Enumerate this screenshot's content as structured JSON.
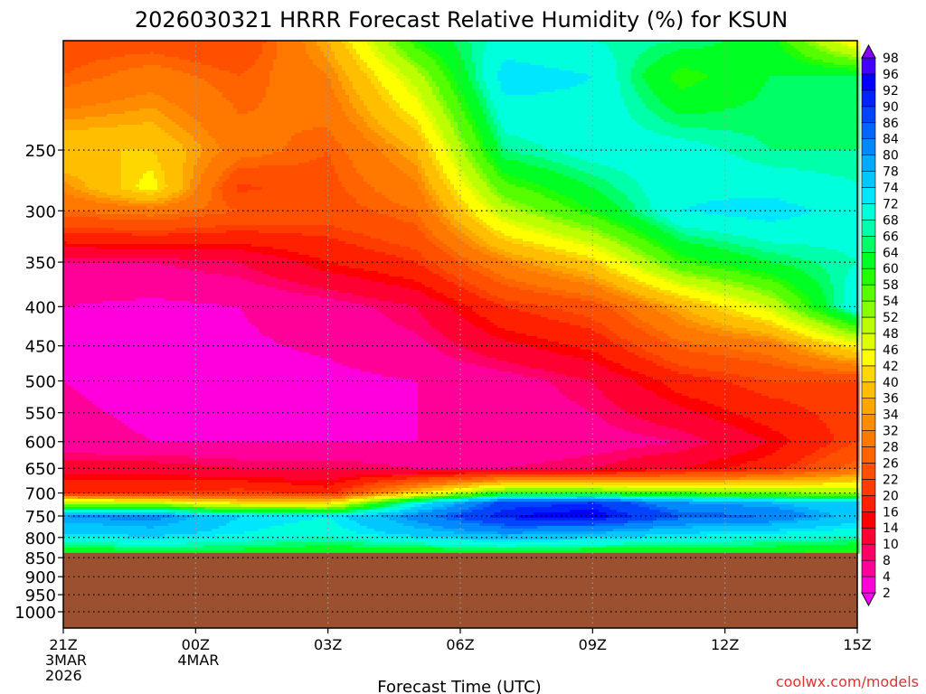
{
  "chart_data": {
    "type": "heatmap",
    "title": "2026030321 HRRR Forecast Relative Humidity (%) for KSUN",
    "xlabel": "Forecast Time (UTC)",
    "ylabel": "",
    "credit": "coolwx.com/models",
    "x_hours": [
      0,
      18
    ],
    "x_ticks": [
      {
        "hour": 0,
        "labels": [
          "21Z",
          "3MAR",
          "2026"
        ]
      },
      {
        "hour": 3,
        "labels": [
          "00Z",
          "4MAR"
        ]
      },
      {
        "hour": 6,
        "labels": [
          "03Z"
        ]
      },
      {
        "hour": 9,
        "labels": [
          "06Z"
        ]
      },
      {
        "hour": 12,
        "labels": [
          "09Z"
        ]
      },
      {
        "hour": 15,
        "labels": [
          "12Z"
        ]
      },
      {
        "hour": 18,
        "labels": [
          "15Z"
        ]
      }
    ],
    "y_axis": {
      "scale": "log-pressure",
      "top_hPa": 180,
      "bottom_hPa": 1050,
      "inverted": true
    },
    "y_ticks": [
      250,
      300,
      350,
      400,
      450,
      500,
      550,
      600,
      650,
      700,
      750,
      800,
      850,
      900,
      950,
      1000
    ],
    "grid": true,
    "surface_hPa": 838,
    "surface_color": "#9b5030",
    "colorbar": {
      "levels": [
        2,
        4,
        8,
        10,
        14,
        16,
        20,
        22,
        26,
        28,
        32,
        34,
        36,
        40,
        42,
        46,
        48,
        52,
        54,
        58,
        60,
        64,
        66,
        68,
        72,
        74,
        78,
        80,
        84,
        86,
        90,
        92,
        96,
        98
      ],
      "colors": [
        "#ff00ff",
        "#ff00dd",
        "#ff0099",
        "#ff0066",
        "#ff0033",
        "#ff0000",
        "#ff2000",
        "#ff3c00",
        "#ff5000",
        "#ff6400",
        "#ff7800",
        "#ff8c00",
        "#ffa500",
        "#ffbe00",
        "#ffd700",
        "#ffff00",
        "#ddff00",
        "#bbff00",
        "#88ff00",
        "#55ff00",
        "#22ff00",
        "#00ff22",
        "#00ff66",
        "#00ffaa",
        "#00ffdd",
        "#00e6ff",
        "#00c8ff",
        "#00aaff",
        "#0088ff",
        "#0066ff",
        "#0044ff",
        "#0022ff",
        "#0000ff",
        "#4400ff",
        "#8800ff"
      ]
    },
    "profiles": [
      {
        "hour": 0,
        "p": [
          180,
          200,
          250,
          300,
          350,
          400,
          500,
          600,
          650,
          700,
          720,
          750,
          790,
          838
        ],
        "rh": [
          24,
          26,
          40,
          28,
          8,
          4,
          4,
          5,
          12,
          20,
          50,
          80,
          74,
          60
        ]
      },
      {
        "hour": 2,
        "p": [
          180,
          200,
          250,
          280,
          300,
          350,
          400,
          500,
          600,
          650,
          700,
          720,
          750,
          790,
          838
        ],
        "rh": [
          24,
          30,
          40,
          44,
          30,
          8,
          3,
          3,
          4,
          12,
          20,
          48,
          82,
          76,
          62
        ]
      },
      {
        "hour": 4,
        "p": [
          180,
          200,
          250,
          280,
          300,
          350,
          400,
          500,
          600,
          650,
          700,
          720,
          750,
          790,
          838
        ],
        "rh": [
          22,
          26,
          30,
          21,
          26,
          10,
          4,
          3,
          4,
          10,
          22,
          40,
          74,
          72,
          62
        ]
      },
      {
        "hour": 6,
        "p": [
          180,
          200,
          250,
          300,
          350,
          400,
          500,
          600,
          650,
          700,
          720,
          750,
          790,
          838
        ],
        "rh": [
          36,
          32,
          26,
          24,
          16,
          6,
          3,
          4,
          10,
          18,
          40,
          72,
          70,
          60
        ]
      },
      {
        "hour": 8,
        "p": [
          180,
          200,
          250,
          300,
          350,
          400,
          500,
          600,
          650,
          700,
          720,
          750,
          790,
          838
        ],
        "rh": [
          60,
          50,
          36,
          28,
          20,
          10,
          4,
          4,
          8,
          40,
          70,
          82,
          76,
          60
        ]
      },
      {
        "hour": 10,
        "p": [
          180,
          200,
          250,
          300,
          350,
          400,
          500,
          600,
          650,
          700,
          720,
          750,
          790,
          838
        ],
        "rh": [
          70,
          74,
          66,
          50,
          32,
          20,
          6,
          4,
          8,
          60,
          88,
          92,
          80,
          62
        ]
      },
      {
        "hour": 12,
        "p": [
          180,
          200,
          250,
          300,
          350,
          400,
          500,
          600,
          650,
          700,
          720,
          750,
          790,
          838
        ],
        "rh": [
          68,
          72,
          70,
          60,
          40,
          24,
          10,
          6,
          10,
          60,
          90,
          94,
          78,
          60
        ]
      },
      {
        "hour": 14,
        "p": [
          180,
          200,
          250,
          300,
          350,
          400,
          500,
          600,
          650,
          700,
          720,
          750,
          790,
          838
        ],
        "rh": [
          66,
          58,
          70,
          72,
          58,
          36,
          18,
          8,
          14,
          56,
          80,
          86,
          74,
          60
        ]
      },
      {
        "hour": 16,
        "p": [
          180,
          200,
          250,
          300,
          350,
          400,
          450,
          500,
          600,
          650,
          700,
          720,
          750,
          790,
          838
        ],
        "rh": [
          62,
          64,
          66,
          74,
          64,
          48,
          30,
          22,
          14,
          18,
          54,
          78,
          84,
          72,
          60
        ]
      },
      {
        "hour": 18,
        "p": [
          180,
          200,
          250,
          300,
          350,
          400,
          450,
          500,
          600,
          650,
          700,
          720,
          750,
          790,
          838
        ],
        "rh": [
          42,
          64,
          66,
          70,
          68,
          72,
          44,
          22,
          22,
          28,
          52,
          74,
          76,
          70,
          58
        ]
      }
    ]
  }
}
